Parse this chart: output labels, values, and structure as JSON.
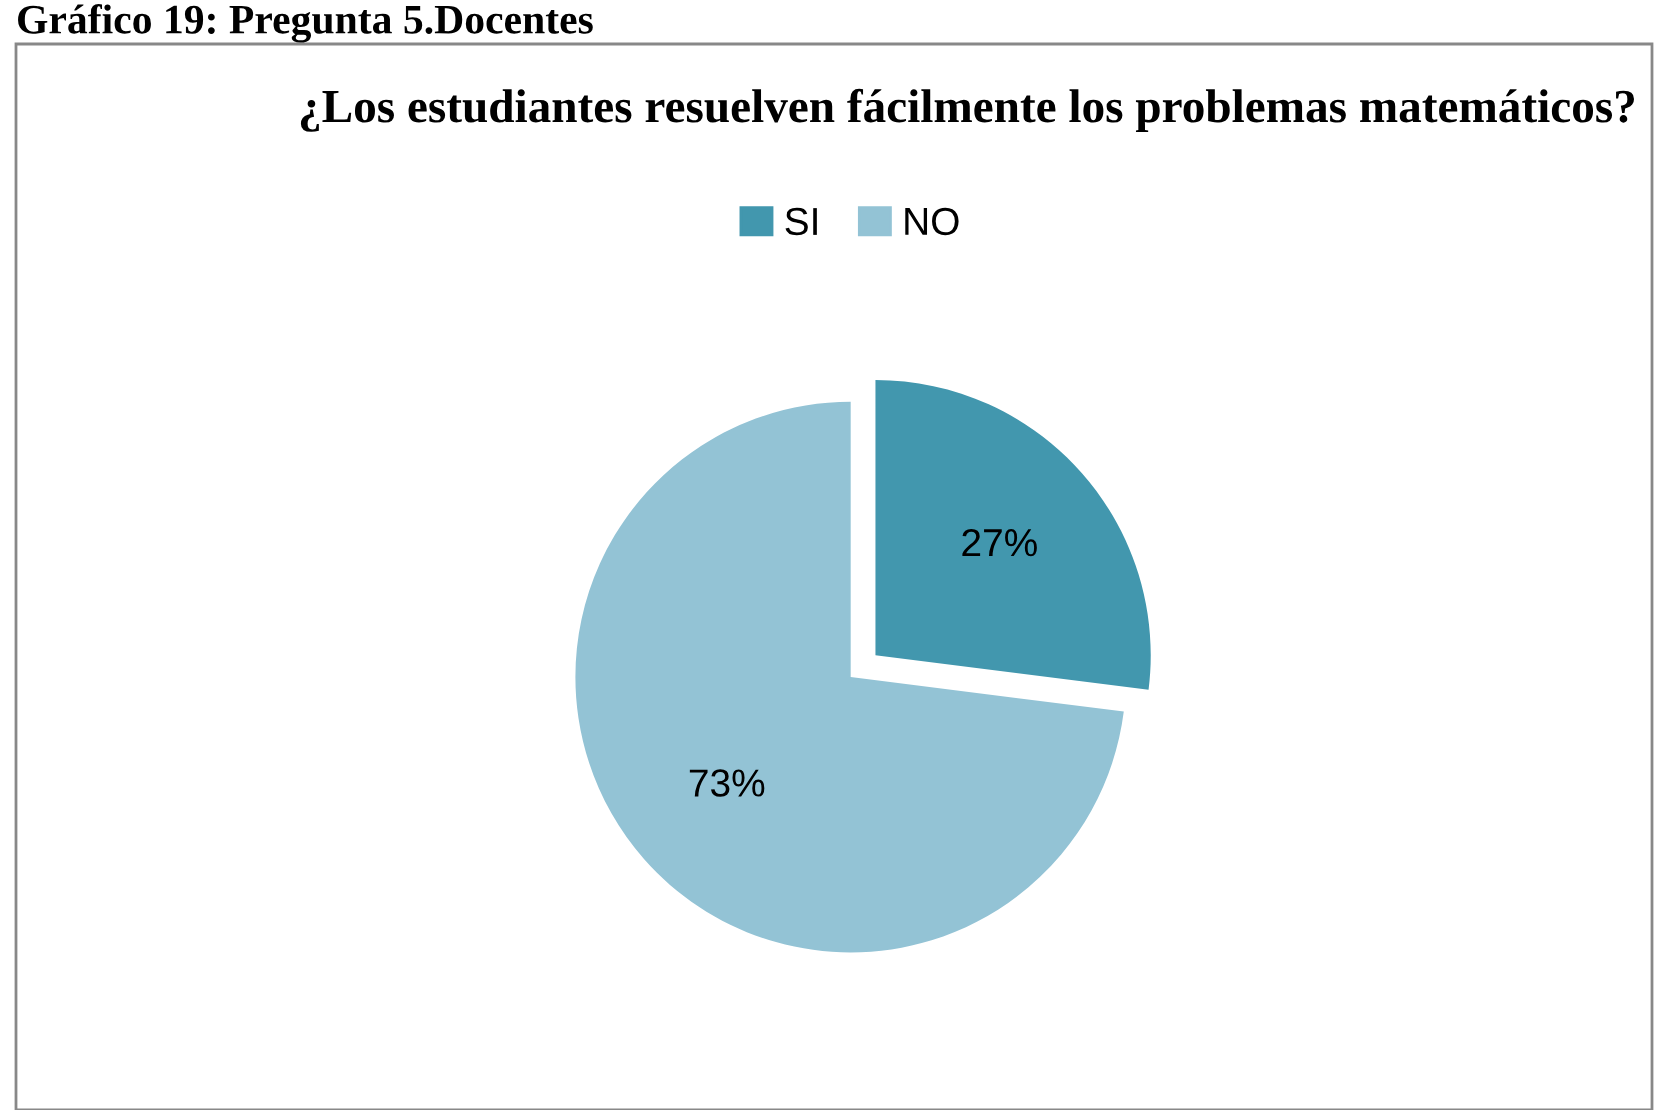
{
  "chart_data": {
    "type": "pie",
    "title": "¿Los estudiantes resuelven fácilmente los problemas matemáticos?",
    "annotations": [
      "Gráfico 19: Pregunta 5.Docentes"
    ],
    "categories": [
      "SI",
      "NO"
    ],
    "values": [
      27,
      73
    ],
    "colors": [
      "#4297ae",
      "#93c3d5"
    ],
    "value_labels": [
      "27%",
      "73%"
    ],
    "legend": "top"
  }
}
